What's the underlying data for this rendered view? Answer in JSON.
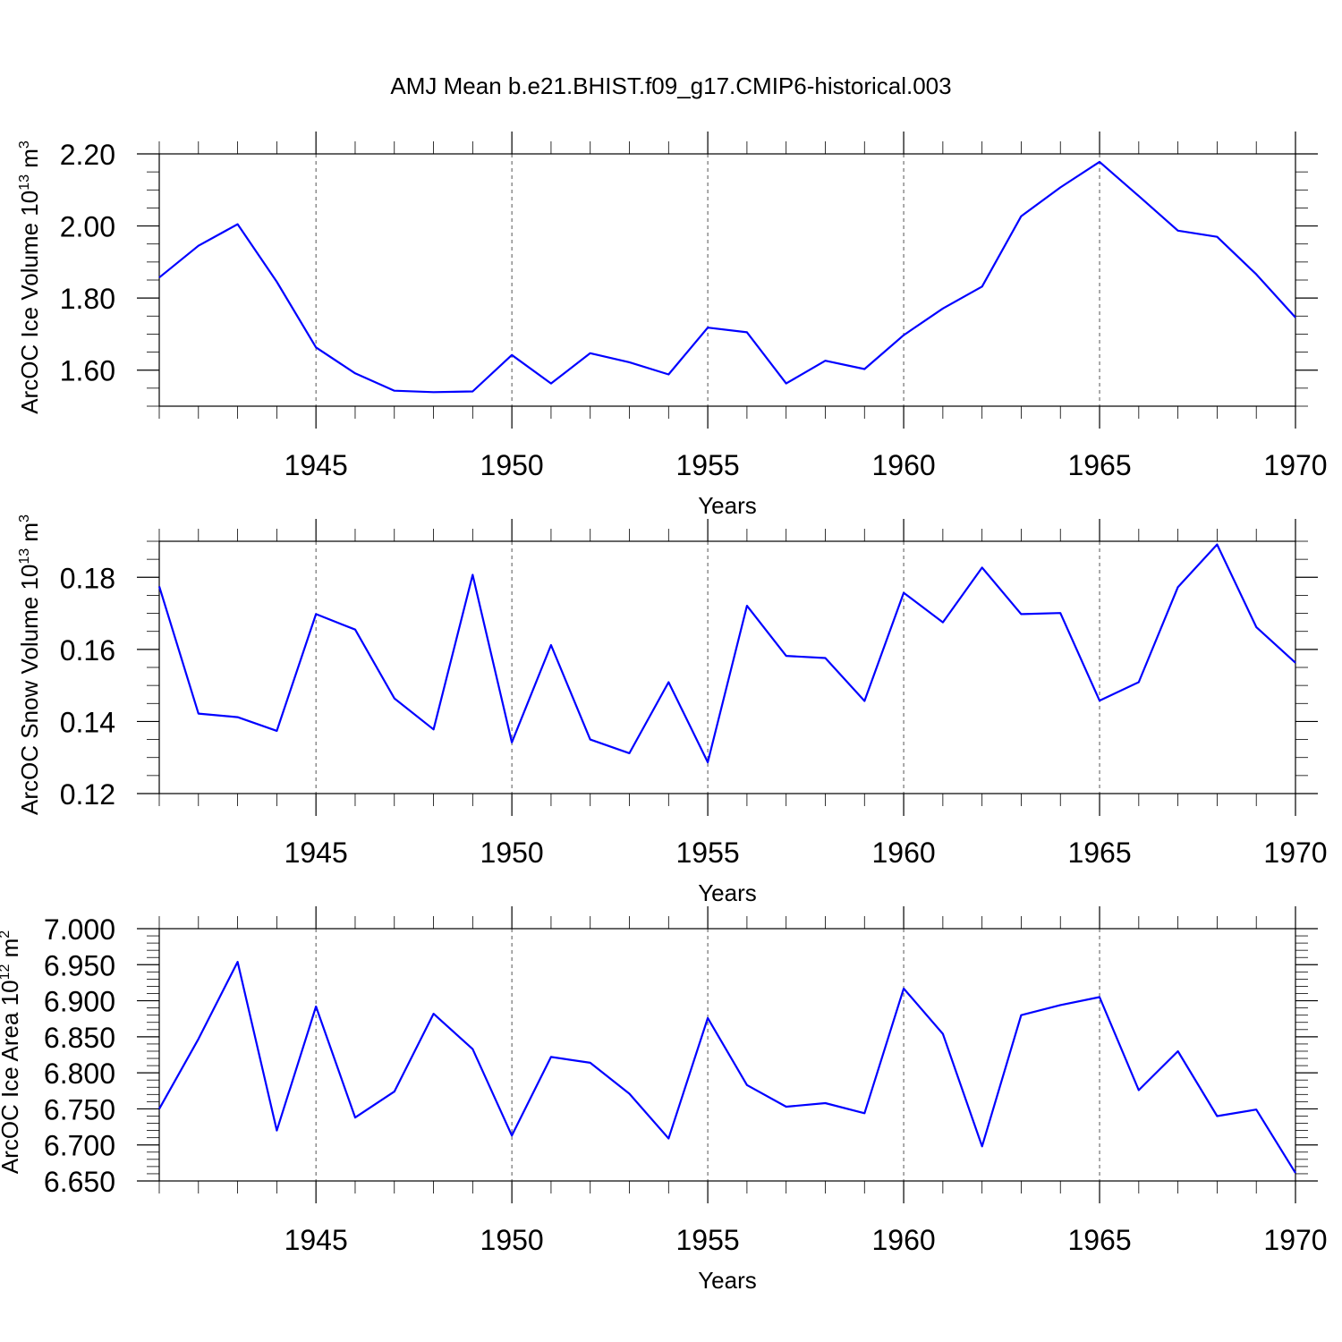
{
  "figure_title": "AMJ Mean b.e21.BHIST.f09_g17.CMIP6-historical.003",
  "chart_data": [
    {
      "type": "line",
      "name": "ice-volume",
      "ylabel_main": "ArcOC Ice Volume 10",
      "ylabel_exp": "13",
      "ylabel_tail": " m",
      "ylabel_unit_exp": "3",
      "xlabel": "Years",
      "x_ticks": [
        1945,
        1950,
        1955,
        1960,
        1965,
        1970
      ],
      "x_tick_labels": [
        "1945",
        "1950",
        "1955",
        "1960",
        "1965",
        "1970"
      ],
      "xlim": [
        1941,
        1970
      ],
      "ylim": [
        1.5,
        2.2
      ],
      "y_ticks": [
        1.6,
        1.8,
        2.0,
        2.2
      ],
      "y_tick_labels": [
        "1.60",
        "1.80",
        "2.00",
        "2.20"
      ],
      "y_minor_step": 0.05,
      "grid_years": [
        1945,
        1950,
        1955,
        1960,
        1965
      ],
      "color": "#0000ff",
      "x": [
        1941,
        1942,
        1943,
        1944,
        1945,
        1946,
        1947,
        1948,
        1949,
        1950,
        1951,
        1952,
        1953,
        1954,
        1955,
        1956,
        1957,
        1958,
        1959,
        1960,
        1961,
        1962,
        1963,
        1964,
        1965,
        1966,
        1967,
        1968,
        1969,
        1970
      ],
      "values": [
        1.857,
        1.945,
        2.005,
        1.845,
        1.663,
        1.591,
        1.543,
        1.539,
        1.541,
        1.642,
        1.563,
        1.647,
        1.622,
        1.588,
        1.718,
        1.705,
        1.563,
        1.626,
        1.603,
        1.697,
        1.771,
        1.832,
        2.027,
        2.107,
        2.178,
        2.083,
        1.987,
        1.97,
        1.866,
        1.746
      ]
    },
    {
      "type": "line",
      "name": "snow-volume",
      "ylabel_main": "ArcOC Snow Volume 10",
      "ylabel_exp": "13",
      "ylabel_tail": " m",
      "ylabel_unit_exp": "3",
      "xlabel": "Years",
      "x_ticks": [
        1945,
        1950,
        1955,
        1960,
        1965,
        1970
      ],
      "x_tick_labels": [
        "1945",
        "1950",
        "1955",
        "1960",
        "1965",
        "1970"
      ],
      "xlim": [
        1941,
        1970
      ],
      "ylim": [
        0.12,
        0.19
      ],
      "y_ticks": [
        0.12,
        0.14,
        0.16,
        0.18
      ],
      "y_tick_labels": [
        "0.12",
        "0.14",
        "0.16",
        "0.18"
      ],
      "y_minor_step": 0.005,
      "grid_years": [
        1945,
        1950,
        1955,
        1960,
        1965
      ],
      "color": "#0000ff",
      "x": [
        1941,
        1942,
        1943,
        1944,
        1945,
        1946,
        1947,
        1948,
        1949,
        1950,
        1951,
        1952,
        1953,
        1954,
        1955,
        1956,
        1957,
        1958,
        1959,
        1960,
        1961,
        1962,
        1963,
        1964,
        1965,
        1966,
        1967,
        1968,
        1969,
        1970
      ],
      "values": [
        0.1775,
        0.1422,
        0.1412,
        0.1374,
        0.1698,
        0.1655,
        0.1464,
        0.1378,
        0.1807,
        0.1342,
        0.1612,
        0.135,
        0.1312,
        0.1509,
        0.1287,
        0.1721,
        0.1582,
        0.1576,
        0.1457,
        0.1757,
        0.1675,
        0.1827,
        0.1698,
        0.1701,
        0.1458,
        0.1509,
        0.1773,
        0.1891,
        0.1662,
        0.1563
      ]
    },
    {
      "type": "line",
      "name": "ice-area",
      "ylabel_main": "ArcOC Ice Area 10",
      "ylabel_exp": "12",
      "ylabel_tail": " m",
      "ylabel_unit_exp": "2",
      "xlabel": "Years",
      "x_ticks": [
        1945,
        1950,
        1955,
        1960,
        1965,
        1970
      ],
      "x_tick_labels": [
        "1945",
        "1950",
        "1955",
        "1960",
        "1965",
        "1970"
      ],
      "xlim": [
        1941,
        1970
      ],
      "ylim": [
        6.65,
        7.0
      ],
      "y_ticks": [
        6.65,
        6.7,
        6.75,
        6.8,
        6.85,
        6.9,
        6.95,
        7.0
      ],
      "y_tick_labels": [
        "6.650",
        "6.700",
        "6.750",
        "6.800",
        "6.850",
        "6.900",
        "6.950",
        "7.000"
      ],
      "y_minor_step": 0.01,
      "grid_years": [
        1945,
        1950,
        1955,
        1960,
        1965
      ],
      "color": "#0000ff",
      "x": [
        1941,
        1942,
        1943,
        1944,
        1945,
        1946,
        1947,
        1948,
        1949,
        1950,
        1951,
        1952,
        1953,
        1954,
        1955,
        1956,
        1957,
        1958,
        1959,
        1960,
        1961,
        1962,
        1963,
        1964,
        1965,
        1966,
        1967,
        1968,
        1969,
        1970
      ],
      "values": [
        6.75,
        6.847,
        6.954,
        6.72,
        6.892,
        6.738,
        6.774,
        6.882,
        6.833,
        6.713,
        6.822,
        6.814,
        6.771,
        6.709,
        6.876,
        6.783,
        6.753,
        6.758,
        6.744,
        6.917,
        6.854,
        6.698,
        6.88,
        6.894,
        6.905,
        6.776,
        6.83,
        6.74,
        6.749,
        6.661
      ]
    }
  ]
}
